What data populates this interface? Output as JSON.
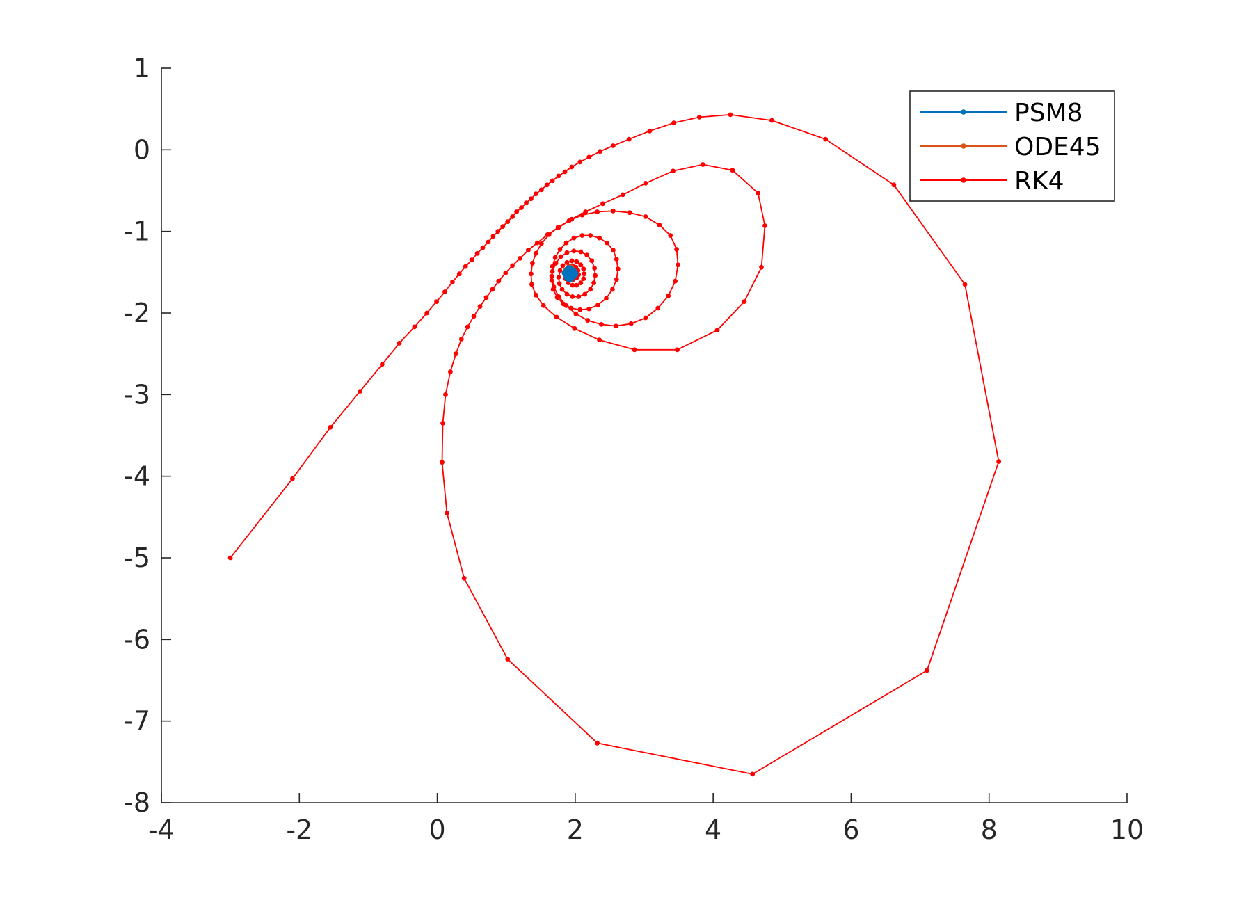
{
  "chart_data": {
    "type": "line",
    "xlim": [
      -4,
      10
    ],
    "ylim": [
      -8,
      1
    ],
    "x_ticks": [
      -4,
      -2,
      0,
      2,
      4,
      6,
      8,
      10
    ],
    "y_ticks": [
      1,
      0,
      -1,
      -2,
      -3,
      -4,
      -5,
      -6,
      -7,
      -8
    ],
    "x_tick_labels": [
      "-4",
      "-2",
      "0",
      "2",
      "4",
      "6",
      "8",
      "10"
    ],
    "y_tick_labels": [
      "1",
      "0",
      "-1",
      "-2",
      "-3",
      "-4",
      "-5",
      "-6",
      "-7",
      "-8"
    ],
    "grid": false,
    "legend_position": "top-right",
    "colors": {
      "psm8": "#0072BD",
      "ode45": "#D95319",
      "rk4": "#FF0000",
      "axis": "#262626"
    },
    "series": [
      {
        "name": "PSM8",
        "marker": "dot",
        "points": [
          [
            1.9,
            -1.47
          ],
          [
            1.97,
            -1.49
          ],
          [
            1.96,
            -1.55
          ],
          [
            1.89,
            -1.56
          ],
          [
            1.86,
            -1.51
          ],
          [
            1.92,
            -1.46
          ],
          [
            1.99,
            -1.52
          ],
          [
            1.92,
            -1.58
          ],
          [
            1.87,
            -1.52
          ],
          [
            1.93,
            -1.5
          ]
        ]
      },
      {
        "name": "ODE45",
        "marker": "dot",
        "points": [
          [
            1.93,
            -1.45
          ],
          [
            1.98,
            -1.5
          ],
          [
            1.95,
            -1.56
          ],
          [
            1.88,
            -1.54
          ],
          [
            1.88,
            -1.48
          ]
        ]
      },
      {
        "name": "RK4",
        "marker": "dot",
        "points": [
          [
            -3.0,
            -5.0
          ],
          [
            -2.1,
            -4.03
          ],
          [
            -1.55,
            -3.4
          ],
          [
            -1.12,
            -2.96
          ],
          [
            -0.8,
            -2.63
          ],
          [
            -0.55,
            -2.37
          ],
          [
            -0.33,
            -2.17
          ],
          [
            -0.15,
            -2.0
          ],
          [
            -0.01,
            -1.86
          ],
          [
            0.11,
            -1.74
          ],
          [
            0.22,
            -1.62
          ],
          [
            0.32,
            -1.52
          ],
          [
            0.41,
            -1.43
          ],
          [
            0.5,
            -1.35
          ],
          [
            0.58,
            -1.27
          ],
          [
            0.66,
            -1.2
          ],
          [
            0.74,
            -1.13
          ],
          [
            0.81,
            -1.06
          ],
          [
            0.88,
            -1.0
          ],
          [
            0.95,
            -0.94
          ],
          [
            1.02,
            -0.88
          ],
          [
            1.09,
            -0.82
          ],
          [
            1.15,
            -0.76
          ],
          [
            1.22,
            -0.71
          ],
          [
            1.29,
            -0.65
          ],
          [
            1.36,
            -0.6
          ],
          [
            1.43,
            -0.54
          ],
          [
            1.51,
            -0.49
          ],
          [
            1.59,
            -0.43
          ],
          [
            1.67,
            -0.38
          ],
          [
            1.76,
            -0.32
          ],
          [
            1.85,
            -0.27
          ],
          [
            1.95,
            -0.21
          ],
          [
            2.07,
            -0.15
          ],
          [
            2.2,
            -0.09
          ],
          [
            2.36,
            -0.02
          ],
          [
            2.55,
            0.05
          ],
          [
            2.78,
            0.13
          ],
          [
            3.08,
            0.23
          ],
          [
            3.43,
            0.33
          ],
          [
            3.8,
            0.4
          ],
          [
            4.25,
            0.43
          ],
          [
            4.85,
            0.36
          ],
          [
            5.63,
            0.13
          ],
          [
            6.62,
            -0.43
          ],
          [
            7.65,
            -1.65
          ],
          [
            8.14,
            -3.82
          ],
          [
            7.1,
            -6.38
          ],
          [
            4.57,
            -7.65
          ],
          [
            2.32,
            -7.27
          ],
          [
            1.02,
            -6.24
          ],
          [
            0.39,
            -5.25
          ],
          [
            0.14,
            -4.45
          ],
          [
            0.07,
            -3.83
          ],
          [
            0.08,
            -3.35
          ],
          [
            0.12,
            -3.0
          ],
          [
            0.19,
            -2.72
          ],
          [
            0.27,
            -2.5
          ],
          [
            0.35,
            -2.32
          ],
          [
            0.44,
            -2.17
          ],
          [
            0.53,
            -2.04
          ],
          [
            0.62,
            -1.92
          ],
          [
            0.71,
            -1.81
          ],
          [
            0.8,
            -1.71
          ],
          [
            0.89,
            -1.61
          ],
          [
            0.99,
            -1.51
          ],
          [
            1.09,
            -1.42
          ],
          [
            1.2,
            -1.33
          ],
          [
            1.32,
            -1.23
          ],
          [
            1.45,
            -1.14
          ],
          [
            1.6,
            -1.04
          ],
          [
            1.76,
            -0.95
          ],
          [
            1.95,
            -0.85
          ],
          [
            2.15,
            -0.76
          ],
          [
            2.4,
            -0.66
          ],
          [
            2.69,
            -0.55
          ],
          [
            3.02,
            -0.41
          ],
          [
            3.42,
            -0.26
          ],
          [
            3.85,
            -0.18
          ],
          [
            4.28,
            -0.25
          ],
          [
            4.65,
            -0.53
          ],
          [
            4.75,
            -0.93
          ],
          [
            4.7,
            -1.44
          ],
          [
            4.45,
            -1.86
          ],
          [
            4.06,
            -2.21
          ],
          [
            3.48,
            -2.45
          ],
          [
            2.86,
            -2.45
          ],
          [
            2.35,
            -2.33
          ],
          [
            1.99,
            -2.19
          ],
          [
            1.73,
            -2.05
          ],
          [
            1.54,
            -1.91
          ],
          [
            1.43,
            -1.78
          ],
          [
            1.37,
            -1.65
          ],
          [
            1.36,
            -1.52
          ],
          [
            1.38,
            -1.39
          ],
          [
            1.43,
            -1.27
          ],
          [
            1.51,
            -1.15
          ],
          [
            1.62,
            -1.04
          ],
          [
            1.75,
            -0.95
          ],
          [
            1.91,
            -0.87
          ],
          [
            2.1,
            -0.8
          ],
          [
            2.32,
            -0.76
          ],
          [
            2.55,
            -0.75
          ],
          [
            2.79,
            -0.77
          ],
          [
            3.02,
            -0.82
          ],
          [
            3.22,
            -0.92
          ],
          [
            3.38,
            -1.05
          ],
          [
            3.47,
            -1.22
          ],
          [
            3.49,
            -1.41
          ],
          [
            3.45,
            -1.61
          ],
          [
            3.35,
            -1.79
          ],
          [
            3.2,
            -1.94
          ],
          [
            3.02,
            -2.06
          ],
          [
            2.81,
            -2.13
          ],
          [
            2.59,
            -2.16
          ],
          [
            2.38,
            -2.14
          ],
          [
            2.18,
            -2.09
          ],
          [
            2.01,
            -2.01
          ],
          [
            1.87,
            -1.91
          ],
          [
            1.76,
            -1.8
          ],
          [
            1.69,
            -1.68
          ],
          [
            1.66,
            -1.55
          ],
          [
            1.67,
            -1.43
          ],
          [
            1.71,
            -1.32
          ],
          [
            1.78,
            -1.22
          ],
          [
            1.87,
            -1.14
          ],
          [
            1.98,
            -1.08
          ],
          [
            2.1,
            -1.05
          ],
          [
            2.22,
            -1.05
          ],
          [
            2.35,
            -1.08
          ],
          [
            2.46,
            -1.14
          ],
          [
            2.55,
            -1.23
          ],
          [
            2.6,
            -1.34
          ],
          [
            2.62,
            -1.46
          ],
          [
            2.6,
            -1.59
          ],
          [
            2.54,
            -1.71
          ],
          [
            2.45,
            -1.82
          ],
          [
            2.33,
            -1.9
          ],
          [
            2.2,
            -1.95
          ],
          [
            2.07,
            -1.96
          ],
          [
            1.94,
            -1.94
          ],
          [
            1.83,
            -1.89
          ],
          [
            1.74,
            -1.81
          ],
          [
            1.68,
            -1.71
          ],
          [
            1.66,
            -1.6
          ],
          [
            1.67,
            -1.49
          ],
          [
            1.72,
            -1.39
          ],
          [
            1.79,
            -1.31
          ],
          [
            1.88,
            -1.26
          ],
          [
            1.98,
            -1.24
          ],
          [
            2.08,
            -1.25
          ],
          [
            2.17,
            -1.29
          ],
          [
            2.24,
            -1.36
          ],
          [
            2.28,
            -1.45
          ],
          [
            2.29,
            -1.54
          ],
          [
            2.27,
            -1.63
          ],
          [
            2.22,
            -1.71
          ],
          [
            2.14,
            -1.77
          ],
          [
            2.05,
            -1.8
          ],
          [
            1.96,
            -1.8
          ],
          [
            1.88,
            -1.77
          ],
          [
            1.81,
            -1.71
          ],
          [
            1.77,
            -1.64
          ],
          [
            1.76,
            -1.56
          ],
          [
            1.78,
            -1.48
          ],
          [
            1.82,
            -1.42
          ],
          [
            1.88,
            -1.38
          ],
          [
            1.95,
            -1.36
          ],
          [
            2.02,
            -1.37
          ],
          [
            2.08,
            -1.41
          ],
          [
            2.12,
            -1.46
          ],
          [
            2.13,
            -1.52
          ],
          [
            2.12,
            -1.58
          ],
          [
            2.08,
            -1.63
          ],
          [
            2.02,
            -1.66
          ],
          [
            1.96,
            -1.66
          ],
          [
            1.9,
            -1.63
          ],
          [
            1.86,
            -1.58
          ],
          [
            1.85,
            -1.52
          ],
          [
            1.87,
            -1.47
          ],
          [
            1.91,
            -1.43
          ],
          [
            1.96,
            -1.42
          ],
          [
            2.01,
            -1.44
          ],
          [
            2.04,
            -1.48
          ],
          [
            2.05,
            -1.53
          ],
          [
            2.02,
            -1.57
          ],
          [
            1.97,
            -1.59
          ],
          [
            1.92,
            -1.57
          ],
          [
            1.9,
            -1.53
          ],
          [
            1.91,
            -1.49
          ],
          [
            1.95,
            -1.47
          ],
          [
            1.99,
            -1.49
          ],
          [
            2.0,
            -1.53
          ],
          [
            1.97,
            -1.55
          ],
          [
            1.94,
            -1.53
          ],
          [
            1.95,
            -1.5
          ]
        ]
      }
    ]
  }
}
